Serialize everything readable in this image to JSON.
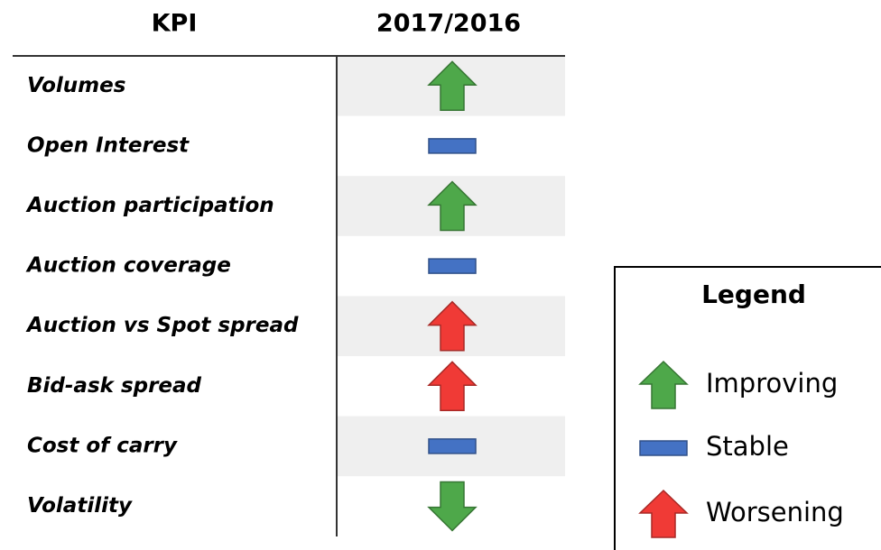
{
  "table": {
    "header": [
      "KPI",
      "2017/2016"
    ],
    "rows": [
      {
        "kpi": "Volumes",
        "trend": "Improving",
        "direction": "up"
      },
      {
        "kpi": "Open Interest",
        "trend": "Stable"
      },
      {
        "kpi": "Auction participation",
        "trend": "Improving",
        "direction": "up"
      },
      {
        "kpi": "Auction coverage",
        "trend": "Stable"
      },
      {
        "kpi": "Auction vs Spot spread",
        "trend": "Worsening",
        "direction": "up"
      },
      {
        "kpi": "Bid-ask spread",
        "trend": "Worsening",
        "direction": "up"
      },
      {
        "kpi": "Cost of carry",
        "trend": "Stable"
      },
      {
        "kpi": "Volatility",
        "trend": "Improving",
        "direction": "down"
      }
    ]
  },
  "legend": {
    "title": "Legend",
    "items": [
      {
        "label": "Improving",
        "color": "#4ea84a",
        "shape": "arrow"
      },
      {
        "label": "Stable",
        "color": "#4472c4",
        "shape": "bar"
      },
      {
        "label": "Worsening",
        "color": "#f03a36",
        "shape": "arrow"
      }
    ]
  }
}
